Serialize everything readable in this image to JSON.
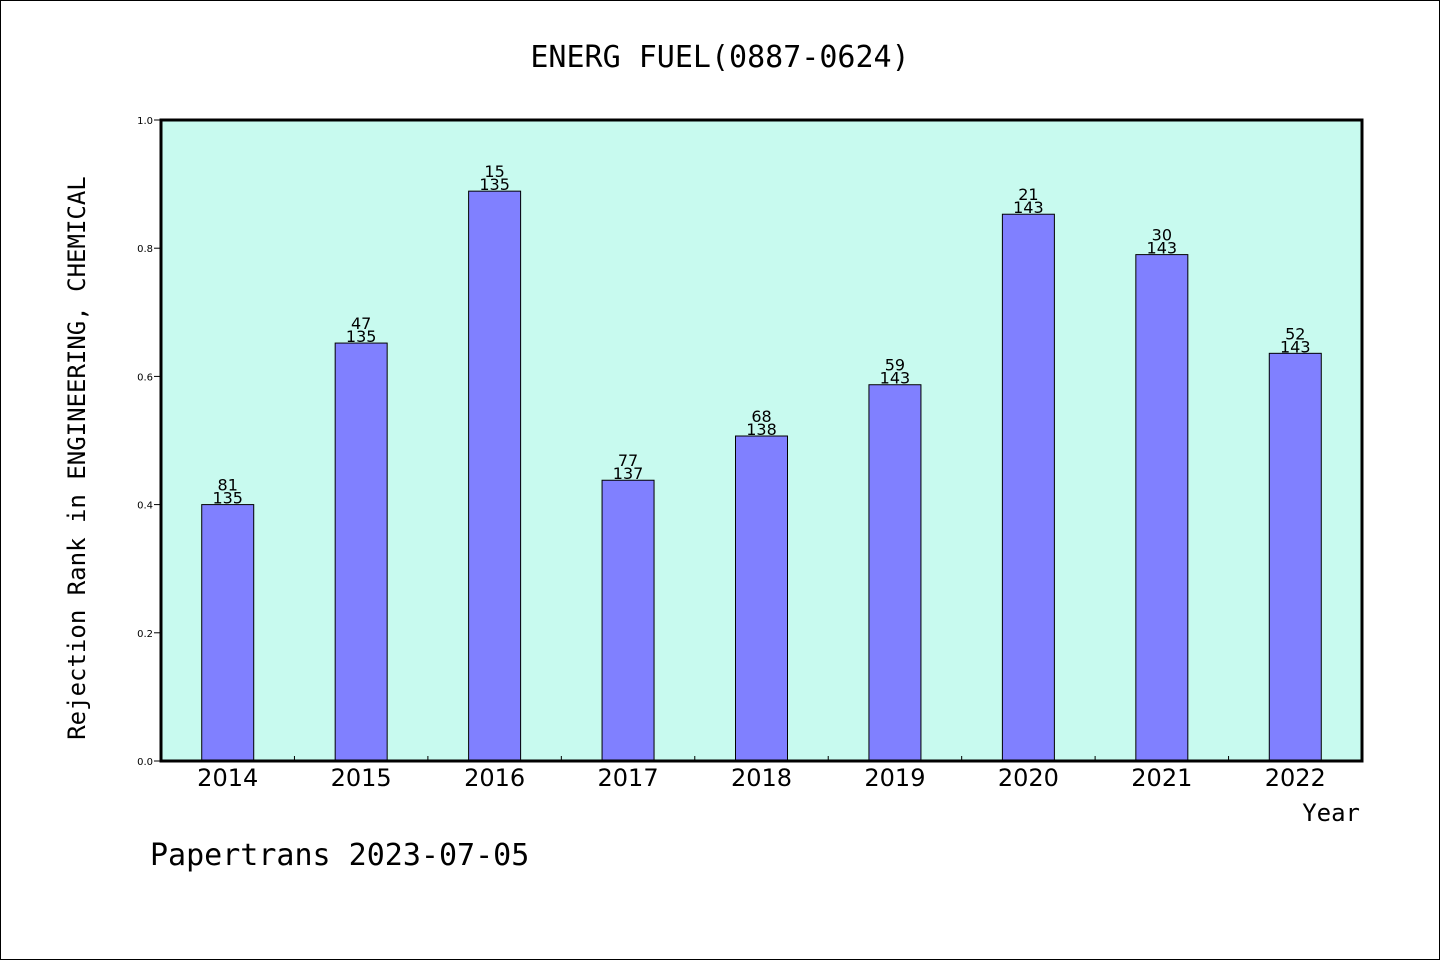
{
  "chart_data": {
    "type": "bar",
    "title": "ENERG FUEL(0887-0624)",
    "xlabel": "Year",
    "ylabel": "Rejection Rank in ENGINEERING, CHEMICAL",
    "ylim": [
      0.0,
      1.0
    ],
    "yticks": [
      "0.0",
      "0.2",
      "0.4",
      "0.6",
      "0.8",
      "1.0"
    ],
    "categories": [
      "2014",
      "2015",
      "2016",
      "2017",
      "2018",
      "2019",
      "2020",
      "2021",
      "2022"
    ],
    "values": [
      0.4,
      0.652,
      0.889,
      0.438,
      0.507,
      0.587,
      0.853,
      0.79,
      0.636
    ],
    "ranks": [
      "81",
      "47",
      "15",
      "77",
      "68",
      "59",
      "21",
      "30",
      "52"
    ],
    "totals": [
      "135",
      "135",
      "135",
      "137",
      "138",
      "143",
      "143",
      "143",
      "143"
    ],
    "grid": false,
    "colors": {
      "plot_background": "#c8faef",
      "bar_fill": "#8080ff",
      "bar_stroke": "#000000"
    }
  },
  "footer": "Papertrans 2023-07-05"
}
